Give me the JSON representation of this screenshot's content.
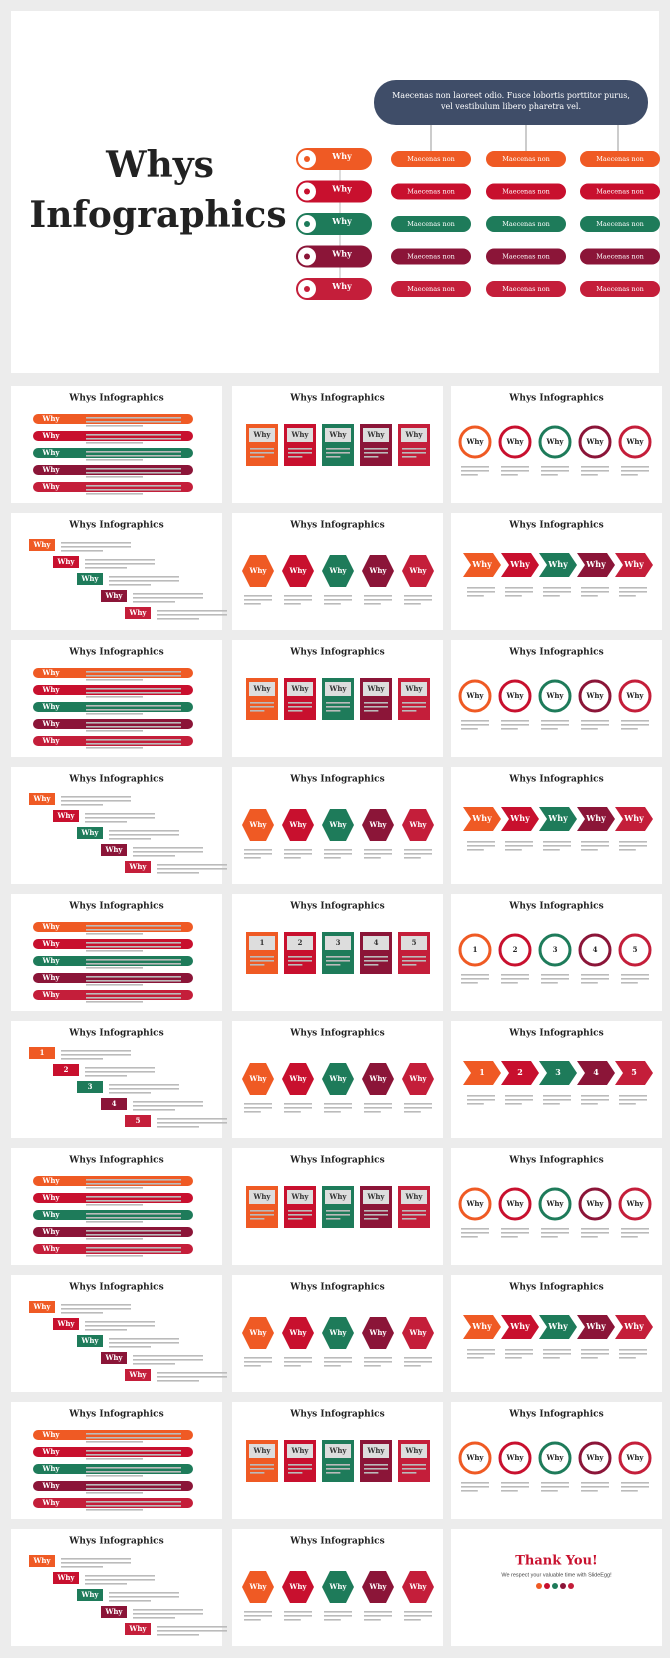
{
  "palette": [
    "#ef5a24",
    "#c8102e",
    "#1e7b5a",
    "#8b1538",
    "#c41e3a"
  ],
  "hero": {
    "title_lines": [
      "Whys",
      "Infographics"
    ],
    "top_box": "Maecenas non laoreet odio. Fusce lobortis porttitor purus, vel vestibulum libero pharetra vel.",
    "rows": [
      {
        "label": "Why",
        "cells": [
          "Maecenas non",
          "Maecenas non",
          "Maecenas non"
        ]
      },
      {
        "label": "Why",
        "cells": [
          "Maecenas non",
          "Maecenas non",
          "Maecenas non"
        ]
      },
      {
        "label": "Why",
        "cells": [
          "Maecenas non",
          "Maecenas non",
          "Maecenas non"
        ]
      },
      {
        "label": "Why",
        "cells": [
          "Maecenas non",
          "Maecenas non",
          "Maecenas non"
        ]
      },
      {
        "label": "Why",
        "cells": [
          "Maecenas non",
          "Maecenas non",
          "Maecenas non"
        ]
      }
    ]
  },
  "slides": [
    {
      "title": "Whys Infographics",
      "labels": [
        "Why",
        "Why",
        "Why",
        "Why",
        "Why"
      ]
    },
    {
      "title": "Whys Infographics",
      "labels": [
        "Why",
        "Why",
        "Why",
        "Why",
        "Why"
      ]
    },
    {
      "title": "Whys Infographics",
      "labels": [
        "Why",
        "Why",
        "Why",
        "Why",
        "Why"
      ]
    },
    {
      "title": "Whys Infographics",
      "labels": [
        "Why",
        "Why",
        "Why",
        "Why",
        "Why"
      ]
    },
    {
      "title": "Whys Infographics",
      "labels": [
        "Why",
        "Why",
        "Why",
        "Why",
        "Why"
      ]
    },
    {
      "title": "Whys Infographics",
      "labels": [
        "Why",
        "Why",
        "Why",
        "Why",
        "Why"
      ]
    },
    {
      "title": "Whys Infographics",
      "labels": [
        "Why",
        "Why",
        "Why",
        "Why",
        "Why"
      ]
    },
    {
      "title": "Whys Infographics",
      "labels": [
        "Why",
        "Why",
        "Why",
        "Why",
        "Why"
      ]
    },
    {
      "title": "Whys Infographics",
      "labels": [
        "Why",
        "Why",
        "Why",
        "Why",
        "Why"
      ]
    },
    {
      "title": "Whys Infographics",
      "labels": [
        "Why",
        "Why",
        "Why",
        "Why",
        "Why"
      ]
    },
    {
      "title": "Whys Infographics",
      "labels": [
        "Why",
        "Why",
        "Why",
        "Why",
        "Why"
      ]
    },
    {
      "title": "Whys Infographics",
      "labels": [
        "Why",
        "Why",
        "Why",
        "Why",
        "Why"
      ]
    },
    {
      "title": "Whys Infographics",
      "labels": [
        "Why",
        "Why",
        "Why",
        "Why",
        "Why"
      ]
    },
    {
      "title": "Whys Infographics",
      "labels": [
        "1",
        "2",
        "3",
        "4",
        "5"
      ]
    },
    {
      "title": "Whys Infographics",
      "labels": [
        "1",
        "2",
        "3",
        "4",
        "5"
      ]
    },
    {
      "title": "Whys Infographics",
      "labels": [
        "1",
        "2",
        "3",
        "4",
        "5"
      ]
    },
    {
      "title": "Whys Infographics",
      "labels": [
        "Why",
        "Why",
        "Why",
        "Why",
        "Why"
      ]
    },
    {
      "title": "Whys Infographics",
      "labels": [
        "1",
        "2",
        "3",
        "4",
        "5"
      ]
    },
    {
      "title": "Whys Infographics",
      "labels": [
        "Why",
        "Why",
        "Why",
        "Why",
        "Why"
      ]
    },
    {
      "title": "Whys Infographics",
      "labels": [
        "Why",
        "Why",
        "Why",
        "Why",
        "Why"
      ]
    },
    {
      "title": "Whys Infographics",
      "labels": [
        "Why",
        "Why",
        "Why",
        "Why",
        "Why"
      ]
    },
    {
      "title": "Whys Infographics",
      "labels": [
        "Why",
        "Why",
        "Why",
        "Why",
        "Why"
      ]
    },
    {
      "title": "Whys Infographics",
      "labels": [
        "Why",
        "Why",
        "Why",
        "Why",
        "Why"
      ]
    },
    {
      "title": "Whys Infographics",
      "labels": [
        "Why",
        "Why",
        "Why",
        "Why",
        "Why"
      ]
    },
    {
      "title": "Whys Infographics",
      "labels": [
        "Why",
        "Why",
        "Why",
        "Why",
        "Why"
      ]
    },
    {
      "title": "Whys Infographics",
      "labels": [
        "Why",
        "Why",
        "Why",
        "Why",
        "Why"
      ]
    },
    {
      "title": "Whys Infographics",
      "labels": [
        "Why",
        "Why",
        "Why",
        "Why",
        "Why"
      ]
    },
    {
      "title": "Whys Infographics",
      "labels": [
        "Why",
        "Why",
        "Why",
        "Why",
        "Why"
      ]
    },
    {
      "title": "Whys Infographics",
      "labels": [
        "Why",
        "Why",
        "Why",
        "Why",
        "Why"
      ]
    }
  ],
  "thank_you": {
    "title": "Thank You!",
    "text": "We respect your valuable time with SlideEgg!"
  }
}
